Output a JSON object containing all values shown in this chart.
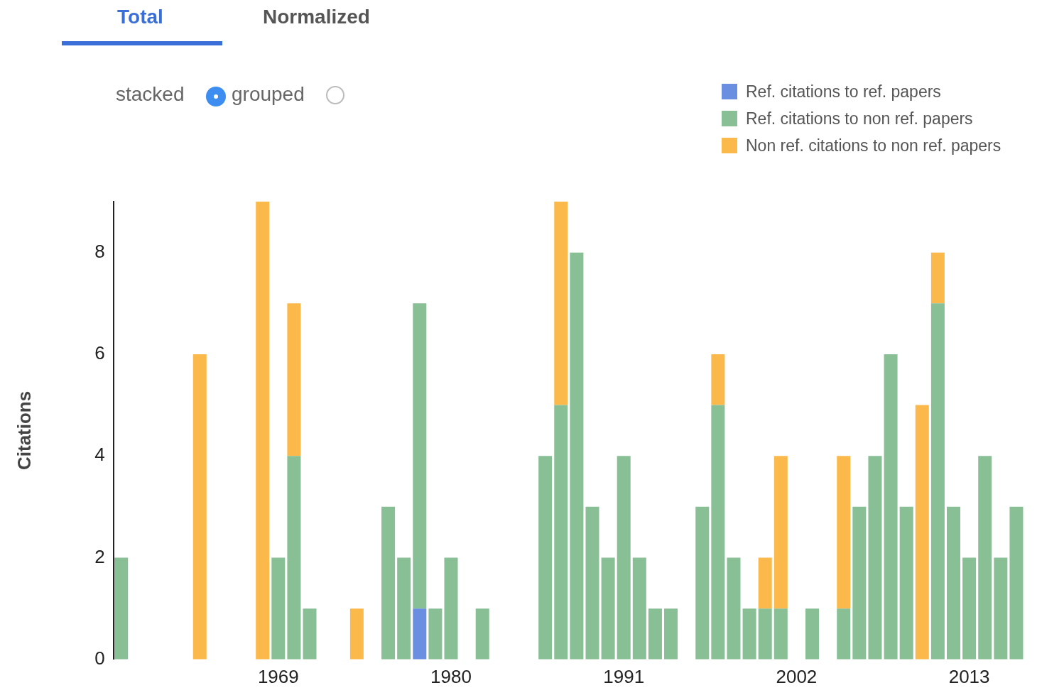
{
  "chart_data": {
    "type": "bar",
    "stacked": true,
    "ylabel": "Citations",
    "ylim": [
      0,
      9
    ],
    "yticks": [
      0,
      2,
      4,
      6,
      8
    ],
    "grid": false,
    "legend": "top right",
    "annotations": [
      "Total",
      "Normalized",
      "stacked",
      "grouped"
    ],
    "categories": [
      null,
      null,
      null,
      null,
      null,
      null,
      null,
      null,
      null,
      null,
      "1969",
      null,
      null,
      null,
      null,
      null,
      null,
      null,
      null,
      null,
      null,
      "1980",
      null,
      null,
      null,
      null,
      null,
      null,
      null,
      null,
      null,
      null,
      "1991",
      null,
      null,
      null,
      null,
      null,
      null,
      null,
      null,
      null,
      null,
      "2002",
      null,
      null,
      null,
      null,
      null,
      null,
      null,
      null,
      null,
      null,
      "2013",
      null,
      null,
      null
    ],
    "series": [
      {
        "name": "Ref. citations to ref. papers",
        "color": "#6a8fe0",
        "values": [
          0,
          0,
          0,
          0,
          0,
          0,
          0,
          0,
          0,
          0,
          0,
          0,
          0,
          0,
          0,
          0,
          0,
          0,
          0,
          1,
          0,
          0,
          0,
          0,
          0,
          0,
          0,
          0,
          0,
          0,
          0,
          0,
          0,
          0,
          0,
          0,
          0,
          0,
          0,
          0,
          0,
          0,
          0,
          0,
          0,
          0,
          0,
          0,
          0,
          0,
          0,
          0,
          0,
          0,
          0,
          0,
          0,
          0
        ]
      },
      {
        "name": "Ref. citations to non ref. papers",
        "color": "#88bf95",
        "values": [
          2,
          0,
          0,
          0,
          0,
          0,
          0,
          0,
          0,
          0,
          2,
          4,
          1,
          0,
          0,
          0,
          0,
          3,
          2,
          6,
          1,
          2,
          0,
          1,
          0,
          0,
          0,
          4,
          5,
          8,
          3,
          2,
          4,
          2,
          1,
          1,
          0,
          3,
          5,
          2,
          1,
          1,
          1,
          0,
          1,
          0,
          1,
          3,
          4,
          6,
          3,
          0,
          7,
          3,
          2,
          4,
          2,
          3
        ]
      },
      {
        "name": "Non ref. citations to non ref. papers",
        "color": "#fbb94b",
        "values": [
          0,
          0,
          0,
          0,
          0,
          6,
          0,
          0,
          0,
          9,
          0,
          3,
          0,
          0,
          0,
          1,
          0,
          0,
          0,
          0,
          0,
          0,
          0,
          0,
          0,
          0,
          0,
          0,
          4,
          0,
          0,
          0,
          0,
          0,
          0,
          0,
          0,
          0,
          1,
          0,
          0,
          1,
          3,
          0,
          0,
          0,
          3,
          0,
          0,
          0,
          0,
          5,
          1,
          0,
          0,
          0,
          0,
          0
        ]
      }
    ]
  }
}
